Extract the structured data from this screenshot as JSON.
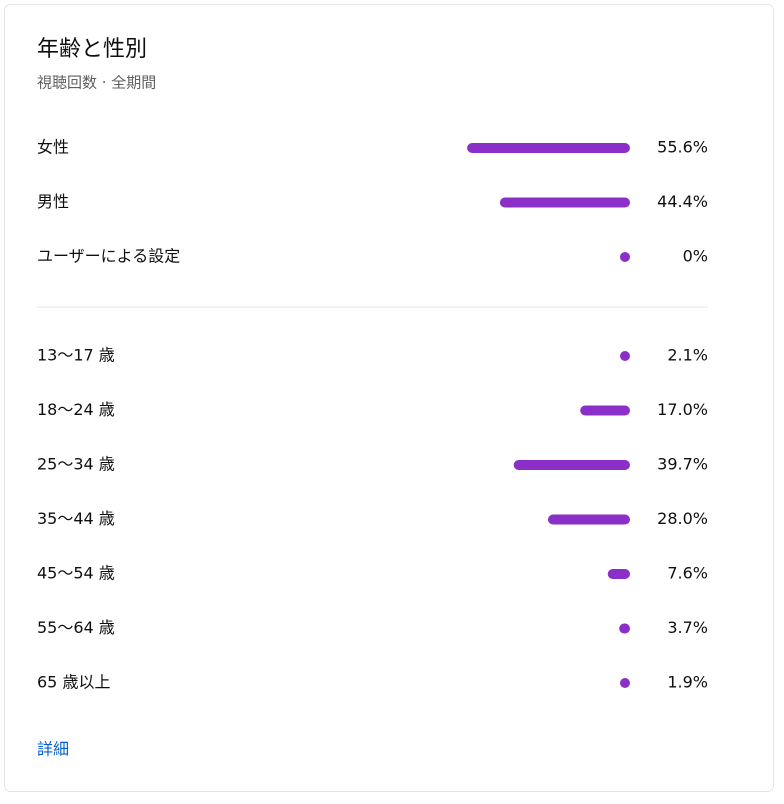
{
  "header": {
    "title": "年齢と性別",
    "subtitle": "視聴回数 · 全期間"
  },
  "gender": {
    "categories": [
      "女性",
      "男性",
      "ユーザーによる設定"
    ],
    "values": [
      55.6,
      44.4,
      0
    ],
    "value_labels": [
      "55.6%",
      "44.4%",
      "0%"
    ],
    "color": "#8b2fc9"
  },
  "age": {
    "categories": [
      "13～17 歳",
      "18～24 歳",
      "25～34 歳",
      "35～44 歳",
      "45～54 歳",
      "55～64 歳",
      "65 歳以上"
    ],
    "values": [
      2.1,
      17.0,
      39.7,
      28.0,
      7.6,
      3.7,
      1.9
    ],
    "value_labels": [
      "2.1%",
      "17.0%",
      "39.7%",
      "28.0%",
      "7.6%",
      "3.7%",
      "1.9%"
    ],
    "color": "#8b2fc9"
  },
  "link": "詳細"
}
